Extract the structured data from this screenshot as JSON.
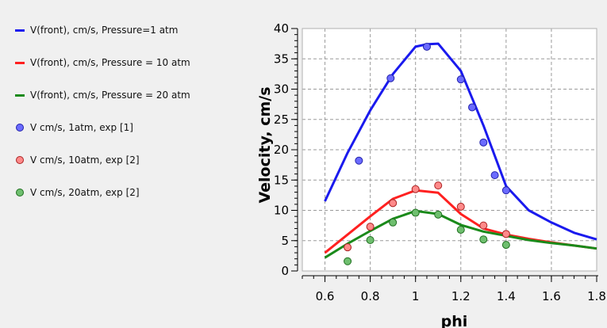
{
  "chart_data": {
    "type": "scatter",
    "xlabel": "phi",
    "ylabel": "Velocity, cm/s",
    "xlim": [
      0.5,
      1.8
    ],
    "ylim": [
      0,
      40
    ],
    "xticks": [
      "0.6",
      "0.8",
      "1",
      "1.2",
      "1.4",
      "1.6",
      "1.8"
    ],
    "xtick_values": [
      0.6,
      0.8,
      1.0,
      1.2,
      1.4,
      1.6,
      1.8
    ],
    "yticks": [
      "0",
      "5",
      "10",
      "15",
      "20",
      "25",
      "30",
      "35",
      "40"
    ],
    "ytick_values": [
      0,
      5,
      10,
      15,
      20,
      25,
      30,
      35,
      40
    ],
    "grid": true,
    "legend_position": "left",
    "series": [
      {
        "name": "V(front), cm/s, Pressure=1 atm",
        "kind": "line",
        "color": "#1a1aee",
        "x": [
          0.6,
          0.7,
          0.8,
          0.9,
          1.0,
          1.05,
          1.1,
          1.2,
          1.3,
          1.4,
          1.5,
          1.6,
          1.7,
          1.8
        ],
        "y": [
          11.5,
          19.5,
          26.5,
          32.5,
          37.0,
          37.4,
          37.5,
          33.0,
          24.0,
          14.0,
          10.0,
          8.0,
          6.3,
          5.2
        ]
      },
      {
        "name": "V(front), cm/s, Pressure = 10 atm",
        "kind": "line",
        "color": "#ff2020",
        "x": [
          0.6,
          0.7,
          0.8,
          0.9,
          1.0,
          1.1,
          1.2,
          1.3,
          1.4,
          1.5,
          1.6,
          1.7,
          1.8
        ],
        "y": [
          3.0,
          6.0,
          9.0,
          11.9,
          13.3,
          12.9,
          9.4,
          7.0,
          6.0,
          5.3,
          4.7,
          4.2,
          3.7
        ]
      },
      {
        "name": "V(front), cm/s, Pressure = 20 atm",
        "kind": "line",
        "color": "#1a8a1a",
        "x": [
          0.6,
          0.7,
          0.8,
          0.9,
          1.0,
          1.1,
          1.2,
          1.3,
          1.4,
          1.5,
          1.6,
          1.7,
          1.8
        ],
        "y": [
          2.2,
          4.5,
          6.6,
          8.6,
          9.9,
          9.4,
          7.6,
          6.5,
          5.8,
          5.1,
          4.6,
          4.2,
          3.7
        ]
      },
      {
        "name": "V cm/s, 1atm, exp [1]",
        "kind": "scatter",
        "color": "#6b6bff",
        "stroke": "#2222aa",
        "x": [
          0.75,
          0.89,
          1.05,
          1.2,
          1.25,
          1.3,
          1.35,
          1.4
        ],
        "y": [
          18.2,
          31.8,
          37.0,
          31.6,
          27.0,
          21.2,
          15.8,
          13.3
        ]
      },
      {
        "name": "V cm/s, 10atm, exp [2]",
        "kind": "scatter",
        "color": "#ff8a8a",
        "stroke": "#aa2222",
        "x": [
          0.7,
          0.8,
          0.9,
          1.0,
          1.1,
          1.2,
          1.3,
          1.4
        ],
        "y": [
          3.9,
          7.3,
          11.2,
          13.5,
          14.1,
          10.6,
          7.5,
          6.1
        ]
      },
      {
        "name": "V cm/s, 20atm, exp [2]",
        "kind": "scatter",
        "color": "#6fbf6f",
        "stroke": "#1f6f1f",
        "x": [
          0.7,
          0.8,
          0.9,
          1.0,
          1.1,
          1.2,
          1.3,
          1.4
        ],
        "y": [
          1.6,
          5.1,
          8.0,
          9.6,
          9.3,
          6.8,
          5.2,
          4.3
        ]
      }
    ]
  }
}
